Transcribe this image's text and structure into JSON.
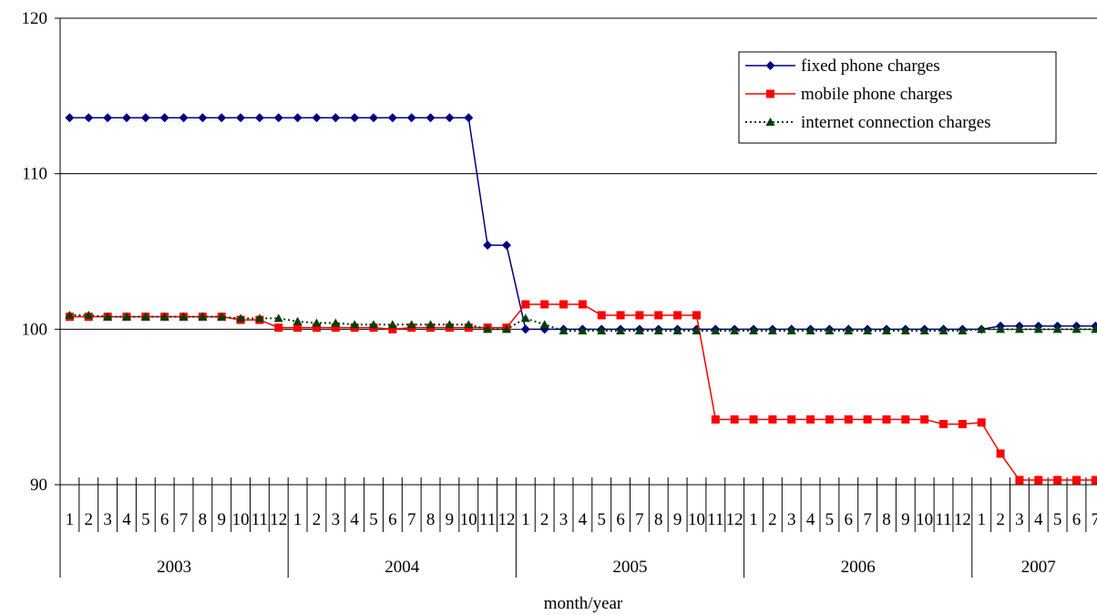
{
  "chart_data": {
    "type": "line",
    "title": "",
    "xlabel": "month/year",
    "ylabel": "",
    "ylim": [
      90,
      120
    ],
    "yticks": [
      "90",
      "100",
      "110",
      "120"
    ],
    "grid": true,
    "legend_position": "top-right",
    "years": [
      {
        "label": "2003",
        "months": 12
      },
      {
        "label": "2004",
        "months": 12
      },
      {
        "label": "2005",
        "months": 12
      },
      {
        "label": "2006",
        "months": 12
      },
      {
        "label": "2007",
        "months": 7
      }
    ],
    "month_labels": [
      "1",
      "2",
      "3",
      "4",
      "5",
      "6",
      "7",
      "8",
      "9",
      "10",
      "11",
      "12",
      "1",
      "2",
      "3",
      "4",
      "5",
      "6",
      "7",
      "8",
      "9",
      "10",
      "11",
      "12",
      "1",
      "2",
      "3",
      "4",
      "5",
      "6",
      "7",
      "8",
      "9",
      "10",
      "11",
      "12",
      "1",
      "2",
      "3",
      "4",
      "5",
      "6",
      "7",
      "8",
      "9",
      "10",
      "11",
      "12",
      "1",
      "2",
      "3",
      "4",
      "5",
      "6",
      "7"
    ],
    "series": [
      {
        "name": "fixed phone charges",
        "color": "#000080",
        "marker": "diamond",
        "line": "solid",
        "values": [
          113.6,
          113.6,
          113.6,
          113.6,
          113.6,
          113.6,
          113.6,
          113.6,
          113.6,
          113.6,
          113.6,
          113.6,
          113.6,
          113.6,
          113.6,
          113.6,
          113.6,
          113.6,
          113.6,
          113.6,
          113.6,
          113.6,
          105.4,
          105.4,
          100.0,
          100.0,
          100.0,
          100.0,
          100.0,
          100.0,
          100.0,
          100.0,
          100.0,
          100.0,
          100.0,
          100.0,
          100.0,
          100.0,
          100.0,
          100.0,
          100.0,
          100.0,
          100.0,
          100.0,
          100.0,
          100.0,
          100.0,
          100.0,
          100.0,
          100.2,
          100.2,
          100.2,
          100.2,
          100.2,
          100.2
        ]
      },
      {
        "name": "mobile phone charges",
        "color": "#ff0000",
        "marker": "square",
        "line": "solid",
        "values": [
          100.8,
          100.8,
          100.8,
          100.8,
          100.8,
          100.8,
          100.8,
          100.8,
          100.8,
          100.6,
          100.6,
          100.1,
          100.1,
          100.1,
          100.1,
          100.1,
          100.1,
          100.0,
          100.1,
          100.1,
          100.1,
          100.1,
          100.1,
          100.1,
          101.6,
          101.6,
          101.6,
          101.6,
          100.9,
          100.9,
          100.9,
          100.9,
          100.9,
          100.9,
          94.2,
          94.2,
          94.2,
          94.2,
          94.2,
          94.2,
          94.2,
          94.2,
          94.2,
          94.2,
          94.2,
          94.2,
          93.9,
          93.9,
          94.0,
          92.0,
          90.3,
          90.3,
          90.3,
          90.3,
          90.3
        ]
      },
      {
        "name": "internet connection charges",
        "color": "#004000",
        "marker": "triangle",
        "line": "dotted",
        "values": [
          100.9,
          100.9,
          100.8,
          100.8,
          100.8,
          100.8,
          100.8,
          100.8,
          100.8,
          100.7,
          100.7,
          100.7,
          100.5,
          100.4,
          100.4,
          100.3,
          100.3,
          100.3,
          100.3,
          100.3,
          100.3,
          100.3,
          100.0,
          100.0,
          100.7,
          100.3,
          99.9,
          99.9,
          99.9,
          99.9,
          99.9,
          99.9,
          99.9,
          99.9,
          99.9,
          99.9,
          99.9,
          99.9,
          99.9,
          99.9,
          99.9,
          99.9,
          99.9,
          99.9,
          99.9,
          99.9,
          99.9,
          99.9,
          100.0,
          100.0,
          100.0,
          100.0,
          100.0,
          100.0,
          100.0
        ]
      }
    ]
  }
}
